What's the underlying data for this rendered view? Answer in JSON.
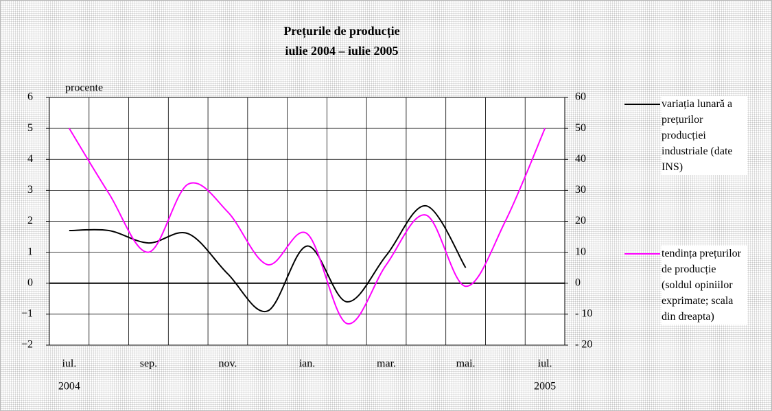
{
  "chart_data": {
    "type": "line",
    "title": "Prețurile de producție",
    "subtitle": "iulie 2004 – iulie 2005",
    "y_label": "procente",
    "categories": [
      "iul.",
      null,
      "sep.",
      null,
      "nov.",
      null,
      "ian.",
      null,
      "mar.",
      null,
      "mai.",
      null,
      "iul."
    ],
    "category_years": [
      "2004",
      null,
      null,
      null,
      null,
      null,
      null,
      null,
      null,
      null,
      null,
      null,
      "2005"
    ],
    "series": [
      {
        "name": "variația lunară a prețurilor producției industriale (date INS)",
        "color": "#000000",
        "values": [
          1.7,
          1.7,
          1.3,
          1.6,
          0.3,
          -0.9,
          1.2,
          -0.6,
          0.9,
          2.5,
          0.5,
          null,
          null
        ]
      },
      {
        "name": "tendința prețurilor de producție (soldul opiniilor exprimate; scala din dreapta)",
        "color": "#ff00ff",
        "axis": "y2",
        "values": [
          50,
          29,
          10,
          32,
          23,
          6,
          16,
          -13,
          6,
          22,
          -1,
          20,
          50
        ]
      }
    ],
    "ylim": [
      -2,
      6
    ],
    "yticks": [
      {
        "value": -2,
        "label": "−2"
      },
      {
        "value": -1,
        "label": "−1"
      },
      0,
      1,
      2,
      3,
      4,
      5,
      6
    ],
    "y2lim": [
      -20,
      60
    ],
    "y2ticks": [
      {
        "value": -20,
        "label": "- 20"
      },
      {
        "value": -10,
        "label": "- 10"
      },
      0,
      10,
      20,
      30,
      40,
      50,
      60
    ],
    "grid": true,
    "legend": "right"
  }
}
